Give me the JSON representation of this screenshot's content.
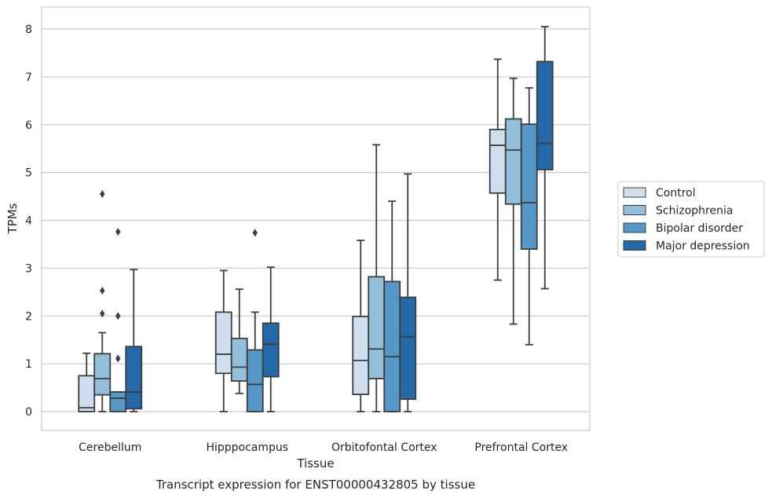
{
  "chart_data": {
    "type": "box",
    "caption": "Transcript expression for ENST00000432805 by tissue",
    "xlabel": "Tissue",
    "ylabel": "TPMs",
    "ylim": [
      -0.4,
      8.47
    ],
    "yticks": [
      0,
      1,
      2,
      3,
      4,
      5,
      6,
      7,
      8
    ],
    "grid": "horizontal",
    "legend_position": "right",
    "categories": [
      "Cerebellum",
      "Hipppocampus",
      "Orbitofontal Cortex",
      "Prefrontal Cortex"
    ],
    "series": [
      {
        "name": "Control",
        "color": "#d0dff0",
        "boxes": [
          {
            "whisker_low": 0.0,
            "q1": 0.0,
            "median": 0.08,
            "q3": 0.75,
            "whisker_high": 1.22,
            "outliers": []
          },
          {
            "whisker_low": 0.0,
            "q1": 0.8,
            "median": 1.2,
            "q3": 2.08,
            "whisker_high": 2.95,
            "outliers": []
          },
          {
            "whisker_low": 0.0,
            "q1": 0.36,
            "median": 1.07,
            "q3": 1.99,
            "whisker_high": 3.58,
            "outliers": []
          },
          {
            "whisker_low": 2.75,
            "q1": 4.57,
            "median": 5.57,
            "q3": 5.9,
            "whisker_high": 7.37,
            "outliers": []
          }
        ]
      },
      {
        "name": "Schizophrenia",
        "color": "#93bfdb",
        "boxes": [
          {
            "whisker_low": 0.0,
            "q1": 0.35,
            "median": 0.69,
            "q3": 1.21,
            "whisker_high": 1.65,
            "outliers": [
              2.05,
              2.53,
              4.55
            ]
          },
          {
            "whisker_low": 0.38,
            "q1": 0.64,
            "median": 0.93,
            "q3": 1.53,
            "whisker_high": 2.56,
            "outliers": []
          },
          {
            "whisker_low": 0.0,
            "q1": 0.69,
            "median": 1.31,
            "q3": 2.82,
            "whisker_high": 5.58,
            "outliers": []
          },
          {
            "whisker_low": 1.83,
            "q1": 4.34,
            "median": 5.47,
            "q3": 6.12,
            "whisker_high": 6.97,
            "outliers": []
          }
        ]
      },
      {
        "name": "Bipolar disorder",
        "color": "#5597c6",
        "boxes": [
          {
            "whisker_low": 0.0,
            "q1": 0.0,
            "median": 0.28,
            "q3": 0.41,
            "whisker_high": 0.41,
            "outliers": [
              1.11,
              2.0,
              3.76
            ]
          },
          {
            "whisker_low": 0.0,
            "q1": 0.0,
            "median": 0.57,
            "q3": 1.29,
            "whisker_high": 2.08,
            "outliers": [
              3.74
            ]
          },
          {
            "whisker_low": 0.0,
            "q1": 0.0,
            "median": 1.15,
            "q3": 2.72,
            "whisker_high": 4.4,
            "outliers": []
          },
          {
            "whisker_low": 1.4,
            "q1": 3.4,
            "median": 4.37,
            "q3": 6.01,
            "whisker_high": 6.77,
            "outliers": []
          }
        ]
      },
      {
        "name": "Major depression",
        "color": "#2369a8",
        "boxes": [
          {
            "whisker_low": 0.0,
            "q1": 0.06,
            "median": 0.41,
            "q3": 1.36,
            "whisker_high": 2.97,
            "outliers": []
          },
          {
            "whisker_low": 0.0,
            "q1": 0.73,
            "median": 1.41,
            "q3": 1.85,
            "whisker_high": 3.02,
            "outliers": []
          },
          {
            "whisker_low": 0.0,
            "q1": 0.26,
            "median": 1.56,
            "q3": 2.39,
            "whisker_high": 4.97,
            "outliers": []
          },
          {
            "whisker_low": 2.57,
            "q1": 5.06,
            "median": 5.61,
            "q3": 7.32,
            "whisker_high": 8.05,
            "outliers": []
          }
        ]
      }
    ]
  }
}
